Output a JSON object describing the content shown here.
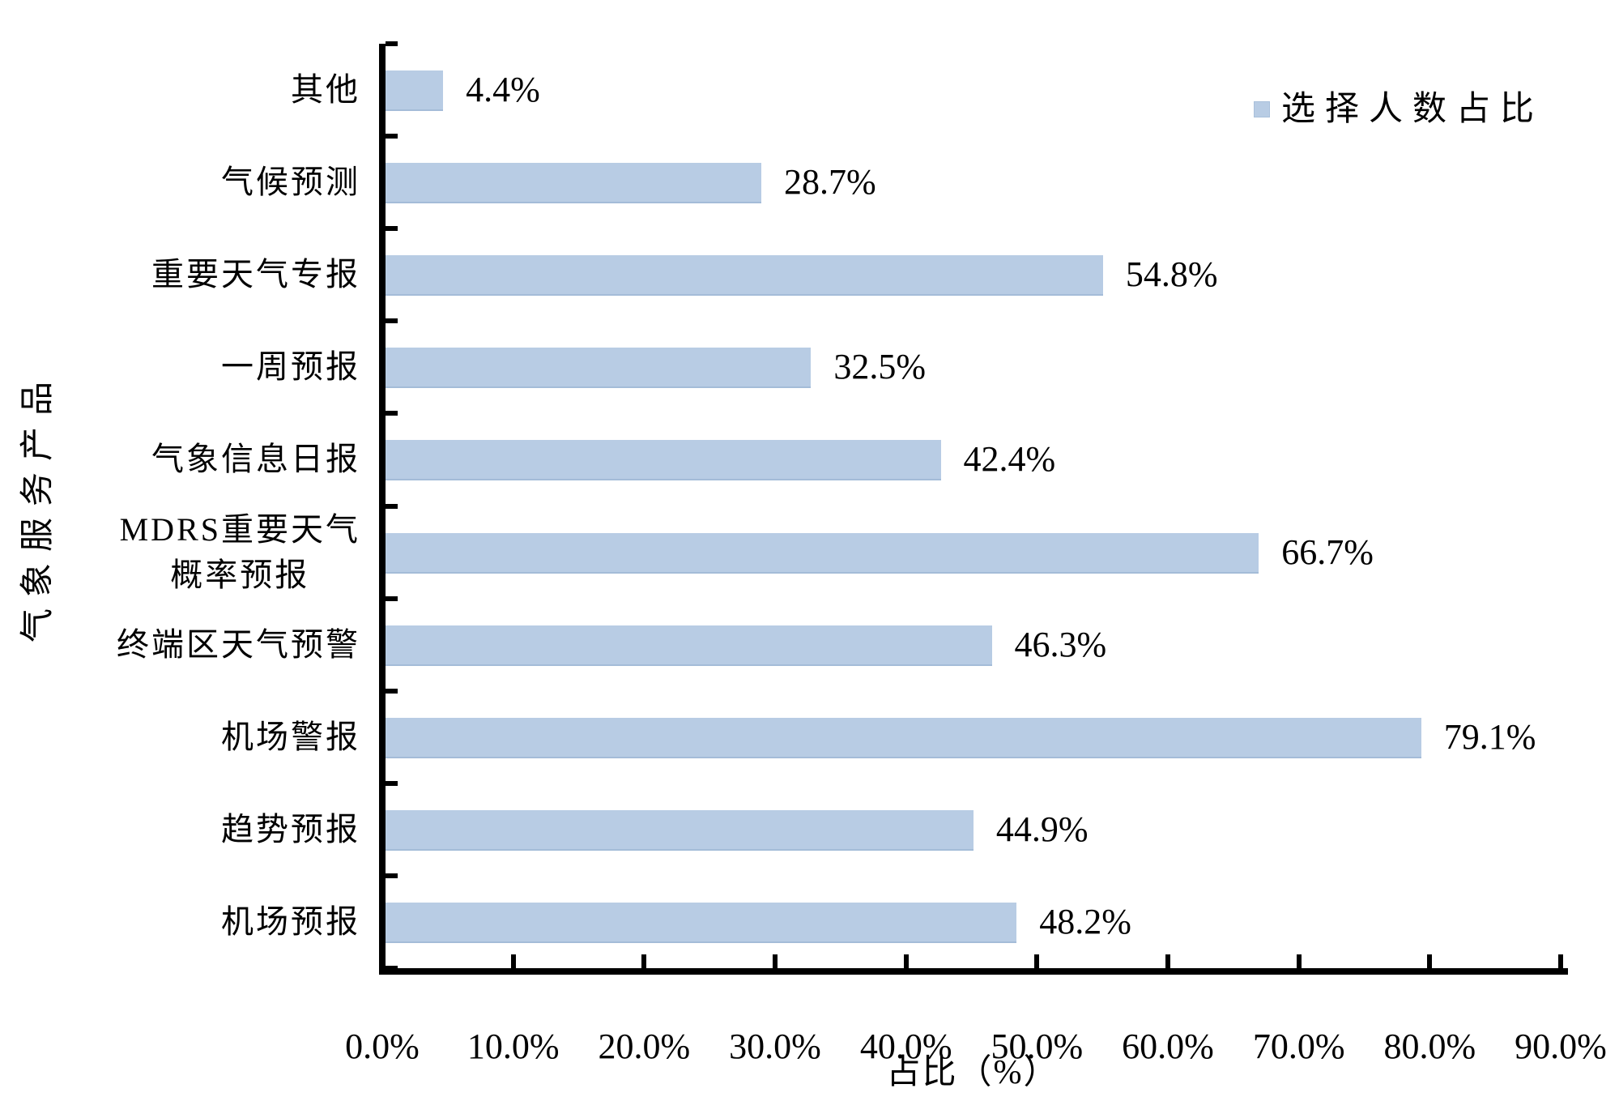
{
  "chart_data": {
    "type": "bar",
    "orientation": "horizontal",
    "title": "",
    "xlabel": "占比（%）",
    "ylabel": "气象服务产品",
    "legend_label": "选择人数占比",
    "legend_position": "top-right",
    "xlim": [
      0,
      90
    ],
    "xticks": [
      "0.0%",
      "10.0%",
      "20.0%",
      "30.0%",
      "40.0%",
      "50.0%",
      "60.0%",
      "70.0%",
      "80.0%",
      "90.0%"
    ],
    "grid": false,
    "bar_color": "#b8cce4",
    "bar_edge_color": "#a4bcd8",
    "axis_color": "#000000",
    "categories": [
      "其他",
      "气候预测",
      "重要天气专报",
      "一周预报",
      "气象信息日报",
      "MDRS重要天气\n概率预报",
      "终端区天气预警",
      "机场警报",
      "趋势预报",
      "机场预报"
    ],
    "values": [
      4.4,
      28.7,
      54.8,
      32.5,
      42.4,
      66.7,
      46.3,
      79.1,
      44.9,
      48.2
    ],
    "value_labels": [
      "4.4%",
      "28.7%",
      "54.8%",
      "32.5%",
      "42.4%",
      "66.7%",
      "46.3%",
      "79.1%",
      "44.9%",
      "48.2%"
    ]
  }
}
